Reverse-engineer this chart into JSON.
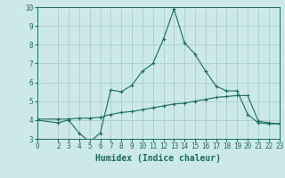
{
  "line1_x": [
    0,
    2,
    3,
    4,
    5,
    6,
    7,
    8,
    9,
    10,
    11,
    12,
    13,
    14,
    15,
    16,
    17,
    18,
    19,
    20,
    21,
    22,
    23
  ],
  "line1_y": [
    4.0,
    3.85,
    4.0,
    3.3,
    2.85,
    3.3,
    5.6,
    5.5,
    5.85,
    6.6,
    7.0,
    8.3,
    9.9,
    8.1,
    7.5,
    6.6,
    5.8,
    5.55,
    5.55,
    4.3,
    3.85,
    3.8,
    3.8
  ],
  "line2_x": [
    0,
    2,
    3,
    4,
    5,
    6,
    7,
    8,
    9,
    10,
    11,
    12,
    13,
    14,
    15,
    16,
    17,
    18,
    19,
    20,
    21,
    22,
    23
  ],
  "line2_y": [
    4.05,
    4.05,
    4.05,
    4.1,
    4.1,
    4.15,
    4.3,
    4.4,
    4.45,
    4.55,
    4.65,
    4.75,
    4.85,
    4.9,
    5.0,
    5.1,
    5.2,
    5.25,
    5.3,
    5.3,
    3.95,
    3.85,
    3.8
  ],
  "line_color": "#1a6b60",
  "bg_color": "#cce8e8",
  "grid_color": "#aacccc",
  "xlabel": "Humidex (Indice chaleur)",
  "xlim": [
    0,
    23
  ],
  "ylim": [
    3,
    10
  ],
  "yticks": [
    3,
    4,
    5,
    6,
    7,
    8,
    9,
    10
  ],
  "xticks": [
    0,
    2,
    3,
    4,
    5,
    6,
    7,
    8,
    9,
    10,
    11,
    12,
    13,
    14,
    15,
    16,
    17,
    18,
    19,
    20,
    21,
    22,
    23
  ],
  "tick_fontsize": 5.5,
  "xlabel_fontsize": 7.0
}
